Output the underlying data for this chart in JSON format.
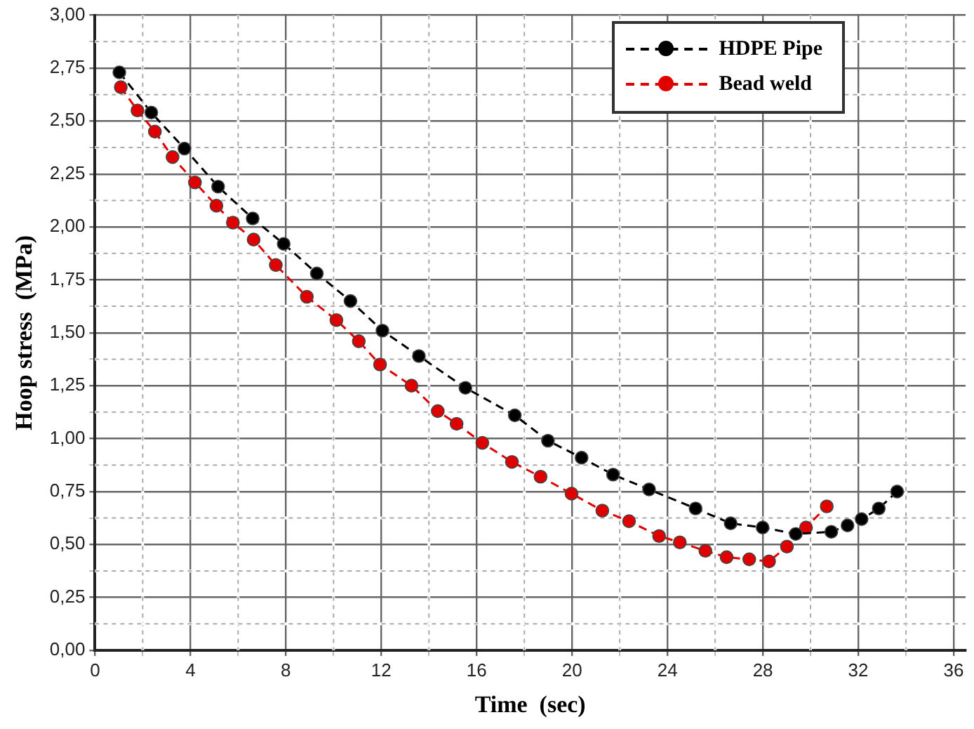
{
  "chart_data": {
    "type": "line",
    "xlabel": "Time  (sec)",
    "ylabel": "Hoop stress  (MPa)",
    "xlim": [
      0,
      36.5
    ],
    "ylim": [
      0,
      3
    ],
    "xticks": [
      0,
      {
        "value": 2,
        "label": null
      },
      4,
      {
        "value": 6,
        "label": null
      },
      8,
      {
        "value": 10,
        "label": null
      },
      12,
      {
        "value": 14,
        "label": null
      },
      16,
      {
        "value": 18,
        "label": null
      },
      20,
      {
        "value": 22,
        "label": null
      },
      24,
      {
        "value": 26,
        "label": null
      },
      28,
      {
        "value": 30,
        "label": null
      },
      32,
      {
        "value": 34,
        "label": null
      },
      36
    ],
    "yticks": [
      {
        "value": 0,
        "label": "0,00"
      },
      {
        "value": 0.125,
        "label": null
      },
      {
        "value": 0.25,
        "label": "0,25"
      },
      {
        "value": 0.375,
        "label": null
      },
      {
        "value": 0.5,
        "label": "0,50"
      },
      {
        "value": 0.625,
        "label": null
      },
      {
        "value": 0.75,
        "label": "0,75"
      },
      {
        "value": 0.875,
        "label": null
      },
      {
        "value": 1,
        "label": "1,00"
      },
      {
        "value": 1.125,
        "label": null
      },
      {
        "value": 1.25,
        "label": "1,25"
      },
      {
        "value": 1.375,
        "label": null
      },
      {
        "value": 1.5,
        "label": "1,50"
      },
      {
        "value": 1.625,
        "label": null
      },
      {
        "value": 1.75,
        "label": "1,75"
      },
      {
        "value": 1.875,
        "label": null
      },
      {
        "value": 2,
        "label": "2,00"
      },
      {
        "value": 2.125,
        "label": null
      },
      {
        "value": 2.25,
        "label": "2,25"
      },
      {
        "value": 2.375,
        "label": null
      },
      {
        "value": 2.5,
        "label": "2,50"
      },
      {
        "value": 2.625,
        "label": null
      },
      {
        "value": 2.75,
        "label": "2,75"
      },
      {
        "value": 2.875,
        "label": null
      },
      {
        "value": 3,
        "label": "3,00"
      }
    ],
    "grid": true,
    "legend": "top right",
    "marker": "circle",
    "line_style": "dashed",
    "series": [
      {
        "name": "HDPE Pipe",
        "color": "#000000",
        "x": [
          1.02,
          2.36,
          3.75,
          5.16,
          6.61,
          7.91,
          9.3,
          10.71,
          12.05,
          13.58,
          15.53,
          17.6,
          18.99,
          20.4,
          21.72,
          23.23,
          25.18,
          26.65,
          27.99,
          29.38,
          30.87,
          31.55,
          32.14,
          32.86,
          33.63
        ],
        "values": [
          2.73,
          2.54,
          2.37,
          2.19,
          2.04,
          1.92,
          1.78,
          1.65,
          1.51,
          1.39,
          1.24,
          1.11,
          0.99,
          0.91,
          0.83,
          0.76,
          0.67,
          0.6,
          0.58,
          0.55,
          0.56,
          0.59,
          0.62,
          0.67,
          0.75
        ]
      },
      {
        "name": "Bead weld",
        "color": "#e00000",
        "x": [
          1.08,
          1.78,
          2.51,
          3.25,
          4.19,
          5.09,
          5.78,
          6.65,
          7.58,
          8.88,
          10.12,
          11.06,
          11.95,
          13.27,
          14.37,
          15.16,
          16.24,
          17.48,
          18.68,
          19.98,
          21.27,
          22.39,
          23.65,
          24.52,
          25.59,
          26.48,
          27.43,
          28.26,
          29.01,
          29.81,
          30.68
        ],
        "values": [
          2.66,
          2.55,
          2.45,
          2.33,
          2.21,
          2.1,
          2.02,
          1.94,
          1.82,
          1.67,
          1.56,
          1.46,
          1.35,
          1.25,
          1.13,
          1.07,
          0.98,
          0.89,
          0.82,
          0.74,
          0.66,
          0.61,
          0.54,
          0.51,
          0.47,
          0.44,
          0.43,
          0.42,
          0.49,
          0.58,
          0.68
        ]
      }
    ]
  }
}
